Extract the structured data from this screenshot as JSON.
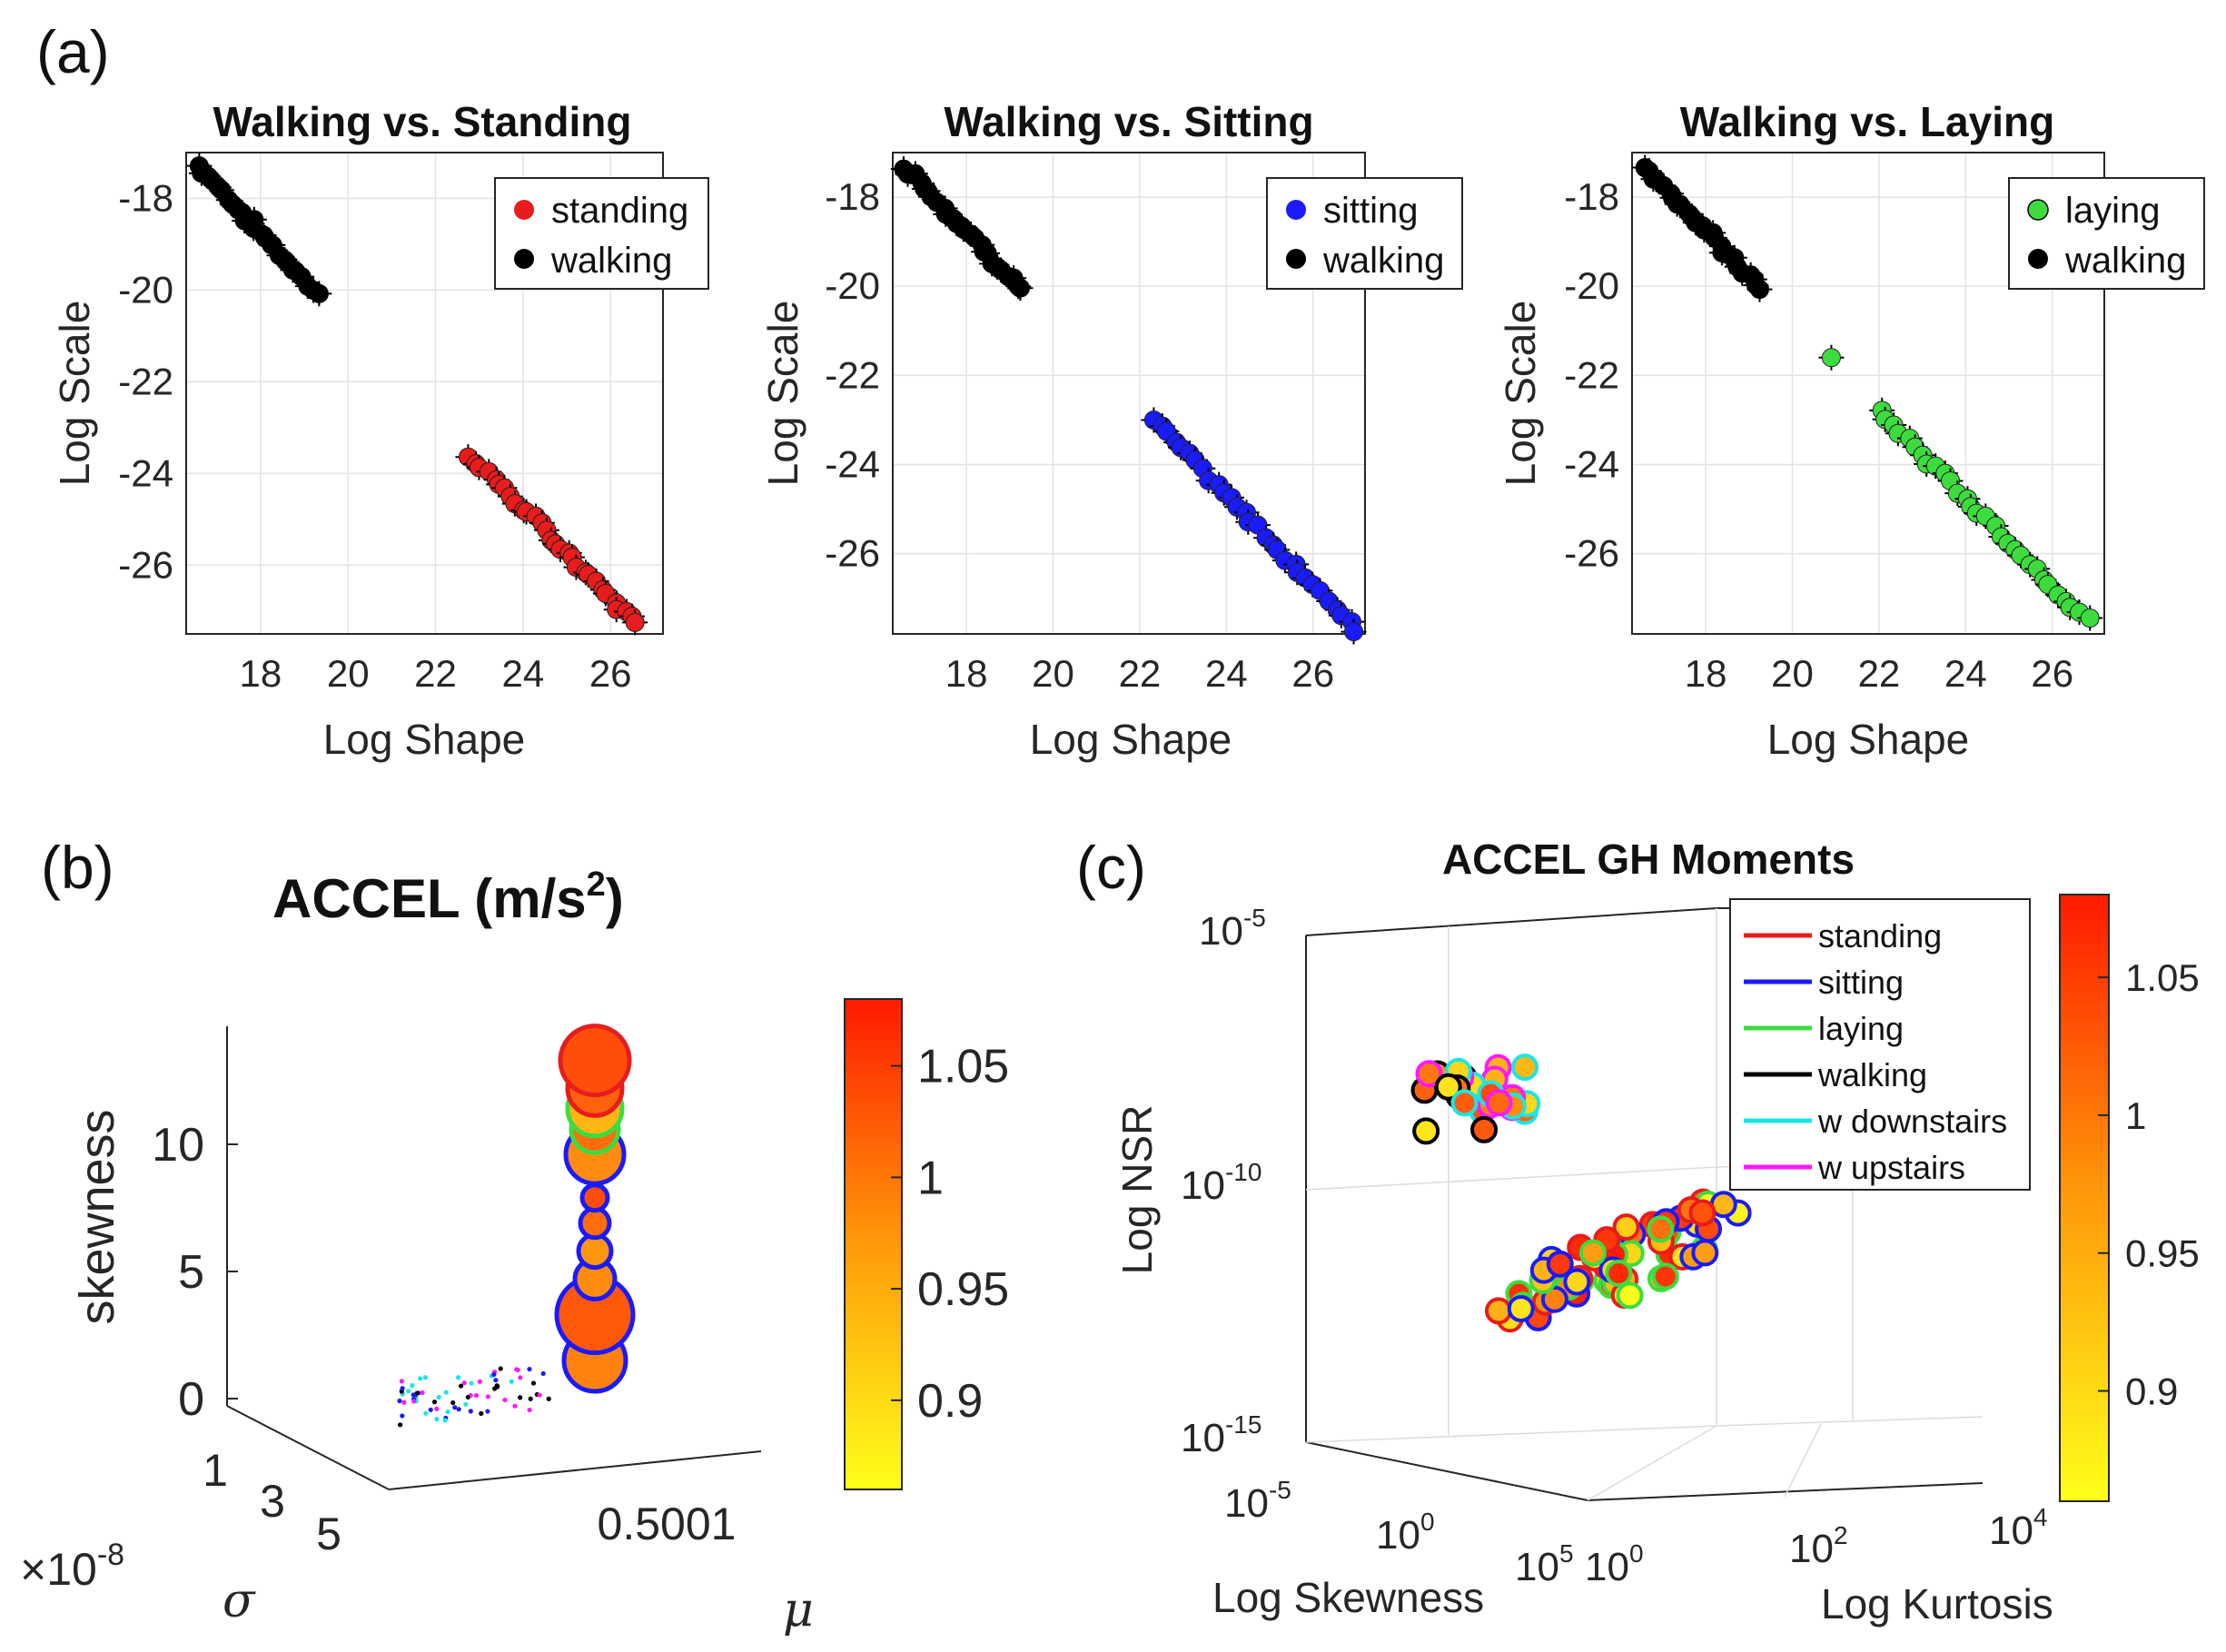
{
  "panel_labels": {
    "a": "(a)",
    "b": "(b)",
    "c": "(c)"
  },
  "chart_data": [
    {
      "type": "scatter",
      "panel": "(a)",
      "title": "Walking vs. Standing",
      "xlabel": "Log Shape",
      "ylabel": "Log Scale",
      "xlim": [
        16.3,
        27.2
      ],
      "ylim": [
        -27.5,
        -17
      ],
      "xticks": [
        "18",
        "20",
        "22",
        "24",
        "26"
      ],
      "yticks": [
        "-18",
        "-20",
        "-22",
        "-24",
        "-26"
      ],
      "legend": [
        "standing",
        "walking"
      ],
      "series": [
        {
          "name": "walking",
          "color": "#000000",
          "x_range": [
            16.6,
            19.3
          ],
          "y_range": [
            -17.3,
            -20.1
          ],
          "n": 26
        },
        {
          "name": "standing",
          "color": "#e81c1c",
          "x_range": [
            22.8,
            26.6
          ],
          "y_range": [
            -23.6,
            -27.3
          ],
          "n": 30
        }
      ]
    },
    {
      "type": "scatter",
      "panel": "(a)",
      "title": "Walking vs. Sitting",
      "xlabel": "Log Shape",
      "ylabel": "Log Scale",
      "xlim": [
        16.3,
        27.2
      ],
      "ylim": [
        -27.8,
        -17
      ],
      "xticks": [
        "18",
        "20",
        "22",
        "24",
        "26"
      ],
      "yticks": [
        "-18",
        "-20",
        "-22",
        "-24",
        "-26"
      ],
      "legend": [
        "sitting",
        "walking"
      ],
      "series": [
        {
          "name": "walking",
          "color": "#000000",
          "x_range": [
            16.6,
            19.3
          ],
          "y_range": [
            -17.3,
            -20.1
          ],
          "n": 26
        },
        {
          "name": "sitting",
          "color": "#1a1aff",
          "x_range": [
            22.3,
            27.0
          ],
          "y_range": [
            -23.0,
            -27.7
          ],
          "n": 30
        }
      ]
    },
    {
      "type": "scatter",
      "panel": "(a)",
      "title": "Walking vs. Laying",
      "xlabel": "Log Shape",
      "ylabel": "Log Scale",
      "xlim": [
        16.3,
        27.2
      ],
      "ylim": [
        -27.8,
        -17
      ],
      "xticks": [
        "18",
        "20",
        "22",
        "24",
        "26"
      ],
      "yticks": [
        "-18",
        "-20",
        "-22",
        "-24",
        "-26"
      ],
      "legend": [
        "laying",
        "walking"
      ],
      "series": [
        {
          "name": "walking",
          "color": "#000000",
          "x_range": [
            16.6,
            19.3
          ],
          "y_range": [
            -17.3,
            -20.1
          ],
          "n": 26
        },
        {
          "name": "laying",
          "color": "#3ddc3d",
          "x_range": [
            22.0,
            26.8
          ],
          "y_range": [
            -22.8,
            -27.5
          ],
          "n": 30,
          "outlier": [
            20.9,
            -21.6
          ]
        }
      ]
    },
    {
      "type": "scatter3d",
      "panel": "(b)",
      "title": "ACCEL (m/s",
      "title_sup": "2",
      "title_end": ")",
      "xlabel": "σ",
      "xlabel_exp": "×10",
      "xlabel_exp_sup": "-8",
      "ylabel": "μ",
      "zlabel": "skewness",
      "xticks": [
        "1",
        "3",
        "5"
      ],
      "yticks": [
        "0.5001"
      ],
      "zticks": [
        "0",
        "5",
        "10"
      ],
      "zlim": [
        0,
        14
      ],
      "colorbar": {
        "ticks": [
          "1.05",
          "1",
          "0.95",
          "0.9"
        ],
        "range": [
          0.86,
          1.08
        ]
      },
      "points": [
        {
          "skew": 1.5,
          "size": 34,
          "edge": "#1a1aff",
          "fill": 0.98
        },
        {
          "skew": 3.3,
          "size": 42,
          "edge": "#1a1aff",
          "fill": 1.02
        },
        {
          "skew": 4.7,
          "size": 22,
          "edge": "#1a1aff",
          "fill": 0.97
        },
        {
          "skew": 5.8,
          "size": 18,
          "edge": "#1a1aff",
          "fill": 0.96
        },
        {
          "skew": 6.9,
          "size": 16,
          "edge": "#1a1aff",
          "fill": 1.0
        },
        {
          "skew": 7.9,
          "size": 14,
          "edge": "#1a1aff",
          "fill": 1.03
        },
        {
          "skew": 9.6,
          "size": 32,
          "edge": "#1a1aff",
          "fill": 0.97
        },
        {
          "skew": 10.6,
          "size": 26,
          "edge": "#3ddc3d",
          "fill": 1.0
        },
        {
          "skew": 11.4,
          "size": 30,
          "edge": "#3ddc3d",
          "fill": 0.93
        },
        {
          "skew": 12.2,
          "size": 30,
          "edge": "#e81c1c",
          "fill": 1.01
        },
        {
          "skew": 13.3,
          "size": 38,
          "edge": "#e81c1c",
          "fill": 1.03
        }
      ]
    },
    {
      "type": "scatter3d",
      "panel": "(c)",
      "title": "ACCEL GH Moments",
      "xlabel": "Log Skewness",
      "ylabel": "Log Kurtosis",
      "zlabel": "Log NSR",
      "xticks": [
        {
          "b": "10",
          "e": "-5"
        },
        {
          "b": "10",
          "e": "0"
        },
        {
          "b": "10",
          "e": "5"
        }
      ],
      "yticks": [
        {
          "b": "10",
          "e": "0"
        },
        {
          "b": "10",
          "e": "2"
        },
        {
          "b": "10",
          "e": "4"
        }
      ],
      "zticks": [
        {
          "b": "10",
          "e": "-5"
        },
        {
          "b": "10",
          "e": "-10"
        },
        {
          "b": "10",
          "e": "-15"
        }
      ],
      "legend": [
        {
          "label": "standing",
          "color": "#e81c1c"
        },
        {
          "label": "sitting",
          "color": "#1a1aff"
        },
        {
          "label": "laying",
          "color": "#3ddc3d"
        },
        {
          "label": "walking",
          "color": "#000000"
        },
        {
          "label": "w downstairs",
          "color": "#19e6e6"
        },
        {
          "label": "w upstairs",
          "color": "#ff19ff"
        }
      ],
      "colorbar": {
        "ticks": [
          "1.05",
          "1",
          "0.95",
          "0.9"
        ],
        "range": [
          0.86,
          1.08
        ]
      }
    }
  ]
}
